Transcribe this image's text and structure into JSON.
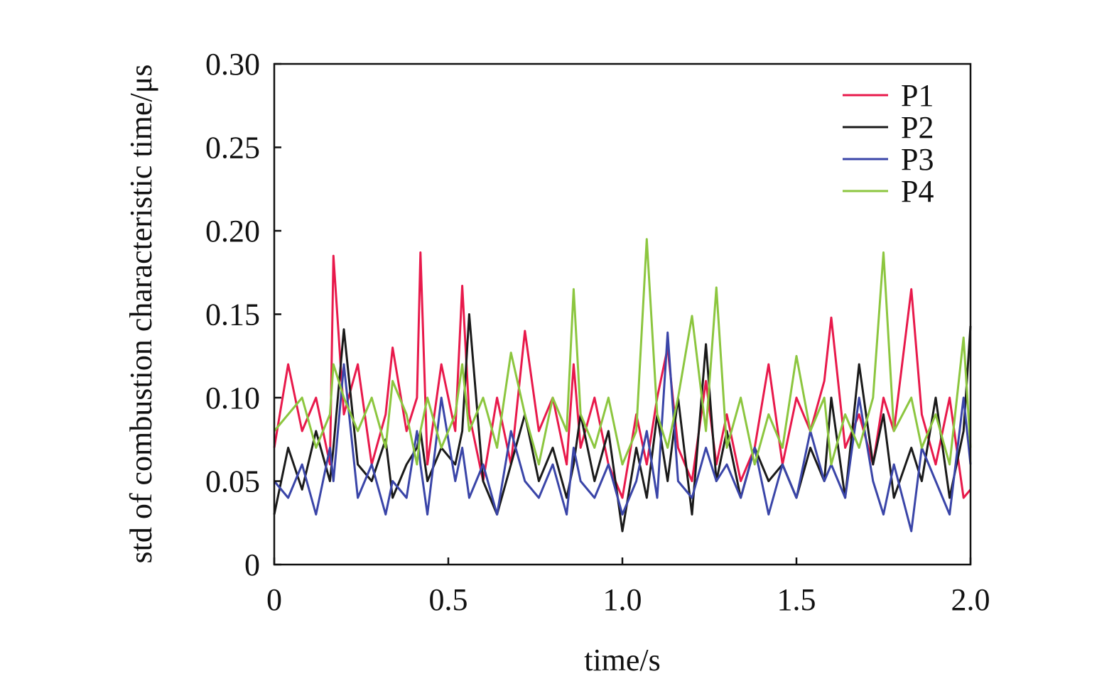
{
  "chart_data": {
    "type": "line",
    "title": "",
    "xlabel": "time/s",
    "ylabel": "std of combustion characteristic time/μs",
    "xlim": [
      0,
      2.0
    ],
    "ylim": [
      0,
      0.3
    ],
    "x_ticks": [
      0,
      0.5,
      1.0,
      1.5,
      2.0
    ],
    "x_tick_labels": [
      "0",
      "0.5",
      "1.0",
      "1.5",
      "2.0"
    ],
    "y_ticks": [
      0,
      0.05,
      0.1,
      0.15,
      0.2,
      0.25,
      0.3
    ],
    "y_tick_labels": [
      "0",
      "0.05",
      "0.10",
      "0.15",
      "0.20",
      "0.25",
      "0.30"
    ],
    "grid": false,
    "legend_position": "top-right",
    "x": [
      0.0,
      0.04,
      0.08,
      0.12,
      0.16,
      0.17,
      0.2,
      0.24,
      0.28,
      0.32,
      0.34,
      0.38,
      0.41,
      0.42,
      0.44,
      0.48,
      0.52,
      0.54,
      0.56,
      0.6,
      0.64,
      0.68,
      0.72,
      0.76,
      0.8,
      0.84,
      0.86,
      0.88,
      0.92,
      0.96,
      1.0,
      1.04,
      1.07,
      1.1,
      1.13,
      1.16,
      1.2,
      1.24,
      1.27,
      1.3,
      1.34,
      1.38,
      1.42,
      1.46,
      1.5,
      1.54,
      1.58,
      1.6,
      1.64,
      1.68,
      1.72,
      1.75,
      1.78,
      1.83,
      1.86,
      1.9,
      1.94,
      1.98,
      2.0
    ],
    "series": [
      {
        "name": "P1",
        "color": "#e8194b",
        "values": [
          0.07,
          0.12,
          0.08,
          0.1,
          0.06,
          0.185,
          0.09,
          0.12,
          0.06,
          0.09,
          0.13,
          0.08,
          0.1,
          0.187,
          0.06,
          0.12,
          0.08,
          0.167,
          0.09,
          0.05,
          0.1,
          0.06,
          0.14,
          0.08,
          0.1,
          0.06,
          0.12,
          0.07,
          0.1,
          0.06,
          0.04,
          0.09,
          0.06,
          0.1,
          0.13,
          0.07,
          0.05,
          0.11,
          0.06,
          0.09,
          0.05,
          0.07,
          0.12,
          0.06,
          0.1,
          0.08,
          0.11,
          0.148,
          0.07,
          0.09,
          0.06,
          0.1,
          0.08,
          0.165,
          0.09,
          0.06,
          0.1,
          0.04,
          0.045
        ]
      },
      {
        "name": "P2",
        "color": "#1a1a1a",
        "values": [
          0.03,
          0.07,
          0.045,
          0.08,
          0.05,
          0.07,
          0.141,
          0.06,
          0.05,
          0.075,
          0.04,
          0.06,
          0.07,
          0.08,
          0.05,
          0.07,
          0.06,
          0.08,
          0.15,
          0.05,
          0.03,
          0.06,
          0.09,
          0.05,
          0.07,
          0.04,
          0.06,
          0.09,
          0.05,
          0.08,
          0.02,
          0.07,
          0.04,
          0.09,
          0.05,
          0.1,
          0.03,
          0.132,
          0.05,
          0.08,
          0.04,
          0.07,
          0.05,
          0.06,
          0.04,
          0.07,
          0.05,
          0.1,
          0.04,
          0.12,
          0.06,
          0.09,
          0.04,
          0.07,
          0.05,
          0.1,
          0.04,
          0.08,
          0.143
        ]
      },
      {
        "name": "P3",
        "color": "#3a45a8",
        "values": [
          0.05,
          0.04,
          0.06,
          0.03,
          0.07,
          0.05,
          0.12,
          0.04,
          0.06,
          0.03,
          0.05,
          0.04,
          0.08,
          0.06,
          0.03,
          0.1,
          0.05,
          0.07,
          0.04,
          0.06,
          0.03,
          0.08,
          0.05,
          0.04,
          0.06,
          0.03,
          0.07,
          0.05,
          0.04,
          0.06,
          0.03,
          0.05,
          0.08,
          0.04,
          0.139,
          0.05,
          0.04,
          0.07,
          0.05,
          0.06,
          0.04,
          0.07,
          0.03,
          0.06,
          0.04,
          0.08,
          0.05,
          0.06,
          0.04,
          0.1,
          0.05,
          0.03,
          0.06,
          0.02,
          0.07,
          0.05,
          0.03,
          0.1,
          0.06
        ]
      },
      {
        "name": "P4",
        "color": "#8cc63f",
        "values": [
          0.08,
          0.09,
          0.1,
          0.07,
          0.09,
          0.12,
          0.1,
          0.08,
          0.1,
          0.07,
          0.11,
          0.09,
          0.06,
          0.08,
          0.1,
          0.07,
          0.09,
          0.12,
          0.08,
          0.1,
          0.07,
          0.127,
          0.09,
          0.06,
          0.1,
          0.08,
          0.165,
          0.09,
          0.07,
          0.1,
          0.06,
          0.08,
          0.195,
          0.09,
          0.07,
          0.1,
          0.149,
          0.08,
          0.166,
          0.07,
          0.1,
          0.06,
          0.09,
          0.07,
          0.125,
          0.08,
          0.1,
          0.06,
          0.09,
          0.07,
          0.1,
          0.187,
          0.08,
          0.1,
          0.07,
          0.09,
          0.06,
          0.136,
          0.07
        ]
      }
    ]
  }
}
